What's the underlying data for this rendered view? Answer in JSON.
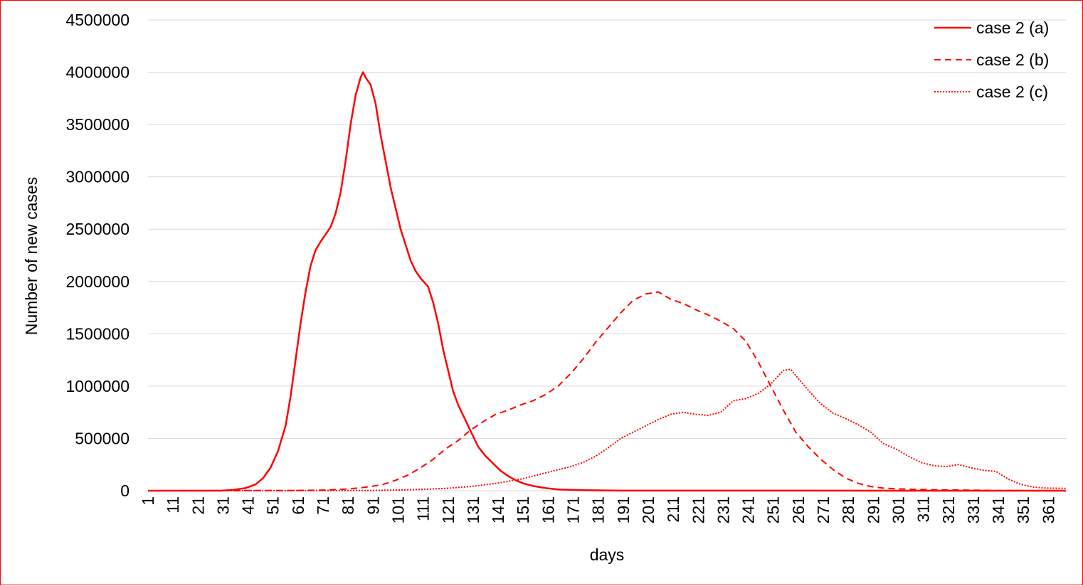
{
  "chart_data": {
    "type": "line",
    "title": "",
    "xlabel": "days",
    "ylabel": "Number of new cases",
    "ylim": [
      0,
      4500000
    ],
    "xlim": [
      1,
      368
    ],
    "yticks": [
      0,
      500000,
      1000000,
      1500000,
      2000000,
      2500000,
      3000000,
      3500000,
      4000000,
      4500000
    ],
    "ytick_labels": [
      "0",
      "500000",
      "1000000",
      "1500000",
      "2000000",
      "2500000",
      "3000000",
      "3500000",
      "4000000",
      "4500000"
    ],
    "xticks": [
      1,
      11,
      21,
      31,
      41,
      51,
      61,
      71,
      81,
      91,
      101,
      111,
      121,
      131,
      141,
      151,
      161,
      171,
      181,
      191,
      201,
      211,
      221,
      231,
      241,
      251,
      261,
      271,
      281,
      291,
      301,
      311,
      321,
      331,
      341,
      351,
      361
    ],
    "xtick_labels": [
      "1",
      "11",
      "21",
      "31",
      "41",
      "51",
      "61",
      "71",
      "81",
      "91",
      "101",
      "111",
      "121",
      "131",
      "141",
      "151",
      "161",
      "171",
      "181",
      "191",
      "201",
      "211",
      "221",
      "231",
      "241",
      "251",
      "261",
      "271",
      "281",
      "291",
      "301",
      "311",
      "321",
      "331",
      "341",
      "351",
      "361"
    ],
    "grid": "horizontal",
    "legend": "top-right",
    "series": [
      {
        "name": "case 2 (a)",
        "style": "solid",
        "color": "#ff0000",
        "points": [
          [
            1,
            0
          ],
          [
            30,
            0
          ],
          [
            35,
            8000
          ],
          [
            40,
            25000
          ],
          [
            44,
            60000
          ],
          [
            47,
            120000
          ],
          [
            50,
            220000
          ],
          [
            53,
            380000
          ],
          [
            56,
            620000
          ],
          [
            58,
            900000
          ],
          [
            60,
            1250000
          ],
          [
            62,
            1600000
          ],
          [
            64,
            1900000
          ],
          [
            66,
            2150000
          ],
          [
            68,
            2300000
          ],
          [
            70,
            2380000
          ],
          [
            72,
            2450000
          ],
          [
            74,
            2520000
          ],
          [
            76,
            2650000
          ],
          [
            78,
            2850000
          ],
          [
            80,
            3150000
          ],
          [
            82,
            3500000
          ],
          [
            84,
            3780000
          ],
          [
            86,
            3950000
          ],
          [
            87,
            4000000
          ],
          [
            88,
            3950000
          ],
          [
            90,
            3880000
          ],
          [
            92,
            3700000
          ],
          [
            94,
            3400000
          ],
          [
            96,
            3150000
          ],
          [
            98,
            2900000
          ],
          [
            100,
            2700000
          ],
          [
            102,
            2500000
          ],
          [
            104,
            2350000
          ],
          [
            106,
            2200000
          ],
          [
            108,
            2100000
          ],
          [
            110,
            2030000
          ],
          [
            113,
            1950000
          ],
          [
            115,
            1800000
          ],
          [
            117,
            1600000
          ],
          [
            119,
            1350000
          ],
          [
            121,
            1150000
          ],
          [
            123,
            950000
          ],
          [
            125,
            820000
          ],
          [
            127,
            720000
          ],
          [
            129,
            620000
          ],
          [
            131,
            520000
          ],
          [
            133,
            420000
          ],
          [
            136,
            330000
          ],
          [
            139,
            260000
          ],
          [
            142,
            190000
          ],
          [
            145,
            140000
          ],
          [
            148,
            100000
          ],
          [
            151,
            70000
          ],
          [
            155,
            45000
          ],
          [
            160,
            25000
          ],
          [
            165,
            12000
          ],
          [
            175,
            5000
          ],
          [
            190,
            1000
          ],
          [
            368,
            0
          ]
        ]
      },
      {
        "name": "case 2 (b)",
        "style": "dashed",
        "color": "#ff0000",
        "points": [
          [
            1,
            0
          ],
          [
            60,
            2000
          ],
          [
            70,
            5000
          ],
          [
            80,
            15000
          ],
          [
            85,
            25000
          ],
          [
            90,
            40000
          ],
          [
            95,
            60000
          ],
          [
            100,
            100000
          ],
          [
            105,
            150000
          ],
          [
            110,
            220000
          ],
          [
            115,
            300000
          ],
          [
            120,
            400000
          ],
          [
            125,
            480000
          ],
          [
            130,
            580000
          ],
          [
            135,
            660000
          ],
          [
            140,
            730000
          ],
          [
            145,
            770000
          ],
          [
            150,
            820000
          ],
          [
            155,
            860000
          ],
          [
            160,
            920000
          ],
          [
            165,
            1000000
          ],
          [
            170,
            1120000
          ],
          [
            175,
            1260000
          ],
          [
            180,
            1420000
          ],
          [
            185,
            1560000
          ],
          [
            190,
            1700000
          ],
          [
            195,
            1820000
          ],
          [
            200,
            1880000
          ],
          [
            205,
            1900000
          ],
          [
            210,
            1830000
          ],
          [
            215,
            1790000
          ],
          [
            220,
            1730000
          ],
          [
            225,
            1680000
          ],
          [
            230,
            1620000
          ],
          [
            235,
            1550000
          ],
          [
            240,
            1430000
          ],
          [
            245,
            1230000
          ],
          [
            250,
            1000000
          ],
          [
            255,
            770000
          ],
          [
            260,
            560000
          ],
          [
            265,
            420000
          ],
          [
            270,
            300000
          ],
          [
            275,
            200000
          ],
          [
            280,
            120000
          ],
          [
            285,
            70000
          ],
          [
            290,
            40000
          ],
          [
            295,
            25000
          ],
          [
            300,
            18000
          ],
          [
            310,
            12000
          ],
          [
            320,
            8000
          ],
          [
            330,
            5000
          ],
          [
            340,
            2000
          ],
          [
            368,
            0
          ]
        ]
      },
      {
        "name": "case 2 (c)",
        "style": "dotted",
        "color": "#ff0000",
        "points": [
          [
            1,
            0
          ],
          [
            90,
            2000
          ],
          [
            100,
            6000
          ],
          [
            110,
            12000
          ],
          [
            120,
            22000
          ],
          [
            130,
            40000
          ],
          [
            140,
            70000
          ],
          [
            150,
            110000
          ],
          [
            155,
            140000
          ],
          [
            160,
            170000
          ],
          [
            165,
            200000
          ],
          [
            170,
            230000
          ],
          [
            175,
            270000
          ],
          [
            180,
            330000
          ],
          [
            185,
            410000
          ],
          [
            190,
            500000
          ],
          [
            195,
            560000
          ],
          [
            200,
            620000
          ],
          [
            205,
            680000
          ],
          [
            210,
            730000
          ],
          [
            215,
            750000
          ],
          [
            220,
            730000
          ],
          [
            225,
            720000
          ],
          [
            230,
            750000
          ],
          [
            235,
            860000
          ],
          [
            240,
            880000
          ],
          [
            245,
            930000
          ],
          [
            250,
            1020000
          ],
          [
            255,
            1150000
          ],
          [
            258,
            1160000
          ],
          [
            260,
            1100000
          ],
          [
            265,
            960000
          ],
          [
            270,
            830000
          ],
          [
            275,
            740000
          ],
          [
            280,
            690000
          ],
          [
            285,
            630000
          ],
          [
            290,
            560000
          ],
          [
            295,
            450000
          ],
          [
            300,
            400000
          ],
          [
            305,
            330000
          ],
          [
            310,
            270000
          ],
          [
            315,
            240000
          ],
          [
            320,
            230000
          ],
          [
            325,
            250000
          ],
          [
            330,
            220000
          ],
          [
            335,
            195000
          ],
          [
            340,
            185000
          ],
          [
            345,
            110000
          ],
          [
            350,
            60000
          ],
          [
            355,
            35000
          ],
          [
            360,
            25000
          ],
          [
            368,
            22000
          ]
        ]
      }
    ]
  }
}
